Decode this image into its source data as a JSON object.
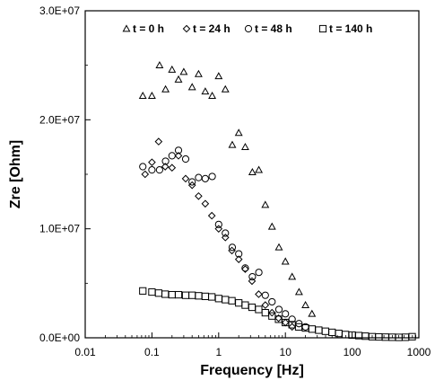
{
  "chart_data": {
    "type": "scatter",
    "title": "",
    "xlabel": "Frequency [Hz]",
    "ylabel": "Zre [Ohm]",
    "xscale": "log",
    "xlim": [
      0.01,
      1000
    ],
    "ylim": [
      0,
      30000000
    ],
    "grid": false,
    "legend_position": "top",
    "x_ticks": [
      0.01,
      0.1,
      1,
      10,
      100,
      1000
    ],
    "x_tick_labels": [
      "0.01",
      "0.1",
      "1",
      "10",
      "100",
      "1000"
    ],
    "y_ticks": [
      0,
      10000000,
      20000000,
      30000000
    ],
    "y_tick_labels": [
      "0.0E+00",
      "1.0E+07",
      "2.0E+07",
      "3.0E+07"
    ],
    "series": [
      {
        "name": "t = 0 h",
        "marker": "triangle",
        "x": [
          0.073,
          0.1,
          0.13,
          0.16,
          0.2,
          0.25,
          0.3,
          0.4,
          0.5,
          0.63,
          0.8,
          1.0,
          1.26,
          1.6,
          2.0,
          2.5,
          3.2,
          4.0,
          5.0,
          6.3,
          8.0,
          10.0,
          12.6,
          16.0,
          20.0,
          25.0
        ],
        "y": [
          22200000,
          22200000,
          25000000,
          22800000,
          24600000,
          23700000,
          24400000,
          23000000,
          24200000,
          22600000,
          22200000,
          24000000,
          22800000,
          17700000,
          18800000,
          17500000,
          15200000,
          15400000,
          12200000,
          10200000,
          8300000,
          7000000,
          5600000,
          4200000,
          3000000,
          2200000
        ]
      },
      {
        "name": "t = 24 h",
        "marker": "diamond",
        "x": [
          0.079,
          0.1,
          0.126,
          0.158,
          0.2,
          0.25,
          0.32,
          0.4,
          0.5,
          0.63,
          0.79,
          1.0,
          1.26,
          1.58,
          2.0,
          2.5,
          3.16,
          3.98,
          5.0,
          6.3,
          7.9,
          10.0,
          12.6
        ],
        "y": [
          15000000,
          16100000,
          18000000,
          15700000,
          15600000,
          16700000,
          14600000,
          14000000,
          13000000,
          12300000,
          11200000,
          10000000,
          9200000,
          8000000,
          7200000,
          6300000,
          5200000,
          4000000,
          3000000,
          2300000,
          1800000,
          1400000,
          1000000
        ]
      },
      {
        "name": "t = 48 h",
        "marker": "circle",
        "x": [
          0.073,
          0.1,
          0.13,
          0.16,
          0.2,
          0.25,
          0.32,
          0.4,
          0.5,
          0.63,
          0.8,
          1.0,
          1.26,
          1.6,
          2.0,
          2.5,
          3.2,
          4.0,
          5.0,
          6.3,
          8.0,
          10.0,
          12.6,
          16.0,
          20.0
        ],
        "y": [
          15700000,
          15400000,
          15400000,
          16200000,
          16700000,
          17200000,
          16400000,
          14300000,
          14700000,
          14600000,
          14800000,
          10400000,
          9600000,
          8300000,
          7700000,
          6400000,
          5600000,
          6000000,
          3900000,
          3300000,
          2600000,
          2200000,
          1700000,
          1300000,
          1000000
        ]
      },
      {
        "name": "t = 140 h",
        "marker": "square",
        "x": [
          0.073,
          0.1,
          0.126,
          0.158,
          0.2,
          0.25,
          0.32,
          0.4,
          0.5,
          0.63,
          0.79,
          1.0,
          1.26,
          1.58,
          2.0,
          2.5,
          3.16,
          3.98,
          5.0,
          6.3,
          7.9,
          10.0,
          12.6,
          15.8,
          20.0,
          25.1,
          31.6,
          39.8,
          50.1,
          63.1,
          79.4,
          100,
          126,
          158,
          200,
          251,
          316,
          398,
          501,
          631,
          794
        ],
        "y": [
          4300000,
          4200000,
          4100000,
          4000000,
          3950000,
          3950000,
          3900000,
          3900000,
          3850000,
          3800000,
          3750000,
          3600000,
          3500000,
          3400000,
          3200000,
          3000000,
          2800000,
          2600000,
          2300000,
          2000000,
          1700000,
          1400000,
          1200000,
          1000000,
          900000,
          800000,
          700000,
          600000,
          500000,
          400000,
          300000,
          250000,
          200000,
          150000,
          100000,
          80000,
          60000,
          50000,
          40000,
          50000,
          100000
        ]
      }
    ]
  }
}
